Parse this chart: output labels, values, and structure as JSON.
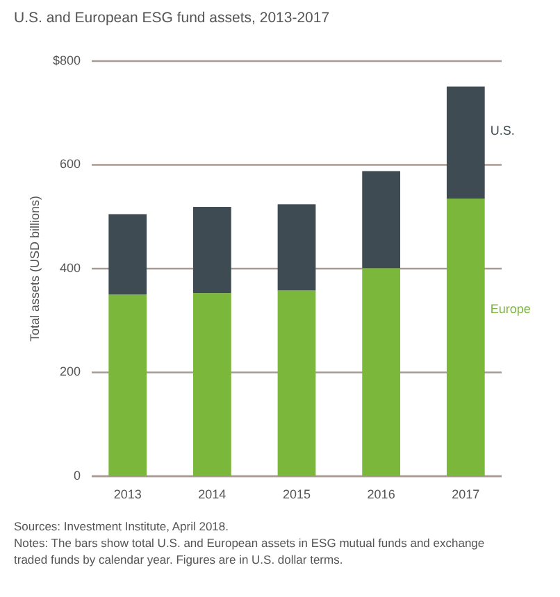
{
  "chart_data": {
    "type": "bar",
    "title": "U.S. and European ESG fund assets, 2013-2017",
    "ylabel": "Total assets (USD billions)",
    "categories": [
      "2013",
      "2014",
      "2015",
      "2016",
      "2017"
    ],
    "stacked": true,
    "series": [
      {
        "name": "Europe",
        "color": "#7ab73a",
        "values": [
          350,
          353,
          358,
          401,
          535
        ]
      },
      {
        "name": "U.S.",
        "color": "#3e4b52",
        "values": [
          155,
          166,
          166,
          187,
          216
        ]
      }
    ],
    "ylim": [
      0,
      800
    ],
    "yticks": [
      0,
      200,
      400,
      600,
      {
        "value": 800,
        "label": "$800"
      }
    ],
    "grid": "y",
    "legend": "right",
    "annotations": [
      "Sources: Investment Institute, April 2018.",
      "Notes: The bars show total U.S. and European assets in ESG mutual funds and exchange traded funds by calendar year. Figures are in U.S. dollar terms."
    ]
  }
}
